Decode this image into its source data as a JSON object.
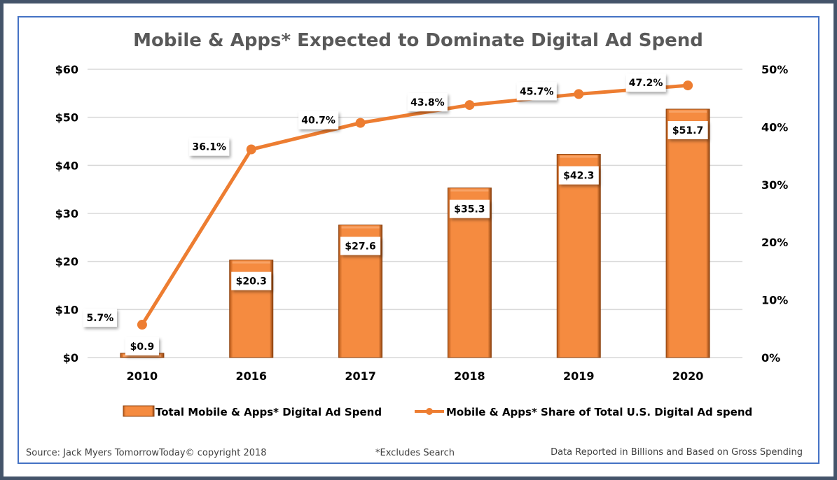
{
  "chart_data": {
    "type": "bar",
    "title": "Mobile & Apps* Expected to Dominate Digital Ad Spend",
    "categories": [
      "2010",
      "2016",
      "2017",
      "2018",
      "2019",
      "2020"
    ],
    "series": [
      {
        "name": "Total Mobile & Apps* Digital Ad Spend",
        "type": "bar",
        "axis": "left",
        "values": [
          0.9,
          20.3,
          27.6,
          35.3,
          42.3,
          51.7
        ],
        "labels": [
          "$0.9",
          "$20.3",
          "$27.6",
          "$35.3",
          "$42.3",
          "$51.7"
        ],
        "color": "#ed7d31"
      },
      {
        "name": "Mobile & Apps* Share of Total U.S. Digital Ad spend",
        "type": "line",
        "axis": "right",
        "values": [
          5.7,
          36.1,
          40.7,
          43.8,
          45.7,
          47.2
        ],
        "labels": [
          "5.7%",
          "36.1%",
          "40.7%",
          "43.8%",
          "45.7%",
          "47.2%"
        ],
        "color": "#ed7d31"
      }
    ],
    "y_left": {
      "ylim": [
        0,
        60
      ],
      "ticks": [
        0,
        10,
        20,
        30,
        40,
        50,
        60
      ],
      "tick_labels": [
        "$0",
        "$10",
        "$20",
        "$30",
        "$40",
        "$50",
        "$60"
      ]
    },
    "y_right": {
      "ylim": [
        0,
        50
      ],
      "ticks": [
        0,
        10,
        20,
        30,
        40,
        50
      ],
      "tick_labels": [
        "0%",
        "10%",
        "20%",
        "30%",
        "40%",
        "50%"
      ]
    },
    "grid": true,
    "legend": "bottom"
  },
  "footer": {
    "source": "Source: Jack Myers TomorrowToday© copyright 2018",
    "note": "*Excludes Search",
    "units": "Data Reported in Billions and Based on Gross Spending"
  },
  "colors": {
    "frame": "#44546a",
    "border": "#4472c4",
    "accent": "#ed7d31",
    "title": "#595959",
    "grid": "#d9d9d9"
  }
}
